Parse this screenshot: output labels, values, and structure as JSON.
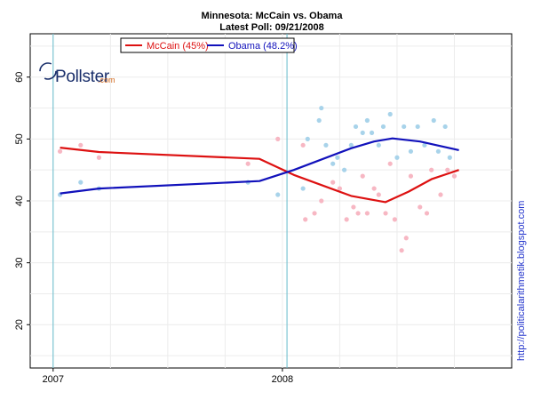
{
  "chart_data": {
    "type": "scatter",
    "title": "Minnesota: McCain vs. Obama",
    "subtitle": "Latest Poll: 09/21/2008",
    "xlabel": "",
    "ylabel": "",
    "x_ticks": [
      2007,
      2008
    ],
    "x_tick_labels": [
      "2007",
      "2008"
    ],
    "xlim": [
      2006.9,
      2009.0
    ],
    "ylim": [
      13,
      67
    ],
    "y_ticks": [
      20,
      30,
      40,
      50,
      60
    ],
    "y_tick_labels": [
      "20",
      "30",
      "40",
      "50",
      "60"
    ],
    "grid": true,
    "vlines": [
      2007.0,
      2008.02
    ],
    "legend_position": "top-left",
    "series": [
      {
        "name": "McCain (45%)",
        "color": "#dd1111",
        "point_color": "#f7b7c3",
        "trend": [
          [
            2007.03,
            48.6
          ],
          [
            2007.2,
            47.9
          ],
          [
            2007.9,
            46.8
          ],
          [
            2008.05,
            44.2
          ],
          [
            2008.3,
            40.8
          ],
          [
            2008.45,
            39.8
          ],
          [
            2008.55,
            41.5
          ],
          [
            2008.65,
            43.5
          ],
          [
            2008.77,
            45.0
          ]
        ],
        "points": [
          [
            2007.03,
            48
          ],
          [
            2007.12,
            49
          ],
          [
            2007.2,
            47
          ],
          [
            2007.85,
            46
          ],
          [
            2007.98,
            50
          ],
          [
            2008.09,
            49
          ],
          [
            2008.1,
            37
          ],
          [
            2008.14,
            38
          ],
          [
            2008.17,
            40
          ],
          [
            2008.22,
            43
          ],
          [
            2008.25,
            42
          ],
          [
            2008.28,
            37
          ],
          [
            2008.31,
            39
          ],
          [
            2008.33,
            38
          ],
          [
            2008.35,
            44
          ],
          [
            2008.37,
            38
          ],
          [
            2008.4,
            42
          ],
          [
            2008.42,
            41
          ],
          [
            2008.45,
            38
          ],
          [
            2008.47,
            46
          ],
          [
            2008.49,
            37
          ],
          [
            2008.52,
            32
          ],
          [
            2008.54,
            34
          ],
          [
            2008.56,
            44
          ],
          [
            2008.6,
            39
          ],
          [
            2008.63,
            38
          ],
          [
            2008.65,
            45
          ],
          [
            2008.69,
            41
          ],
          [
            2008.72,
            45
          ],
          [
            2008.75,
            44
          ]
        ]
      },
      {
        "name": "Obama (48.2%)",
        "color": "#1111bb",
        "point_color": "#a8d3ea",
        "trend": [
          [
            2007.03,
            41.2
          ],
          [
            2007.2,
            42.0
          ],
          [
            2007.9,
            43.2
          ],
          [
            2008.05,
            45.0
          ],
          [
            2008.3,
            48.5
          ],
          [
            2008.4,
            49.6
          ],
          [
            2008.48,
            50.1
          ],
          [
            2008.6,
            49.6
          ],
          [
            2008.77,
            48.2
          ]
        ],
        "points": [
          [
            2007.03,
            41
          ],
          [
            2007.12,
            43
          ],
          [
            2007.2,
            42
          ],
          [
            2007.85,
            43
          ],
          [
            2007.98,
            41
          ],
          [
            2008.09,
            42
          ],
          [
            2008.11,
            50
          ],
          [
            2008.16,
            53
          ],
          [
            2008.17,
            55
          ],
          [
            2008.19,
            49
          ],
          [
            2008.22,
            46
          ],
          [
            2008.24,
            47
          ],
          [
            2008.27,
            45
          ],
          [
            2008.3,
            49
          ],
          [
            2008.32,
            52
          ],
          [
            2008.35,
            51
          ],
          [
            2008.37,
            53
          ],
          [
            2008.39,
            51
          ],
          [
            2008.42,
            49
          ],
          [
            2008.44,
            52
          ],
          [
            2008.47,
            54
          ],
          [
            2008.5,
            47
          ],
          [
            2008.53,
            52
          ],
          [
            2008.56,
            48
          ],
          [
            2008.59,
            52
          ],
          [
            2008.62,
            49
          ],
          [
            2008.66,
            53
          ],
          [
            2008.68,
            48
          ],
          [
            2008.71,
            52
          ],
          [
            2008.73,
            47
          ]
        ]
      }
    ]
  },
  "watermark": {
    "logo_text": "Pollster",
    "logo_suffix": ".com",
    "side_text": "http://politicalarithmetik.blogspot.com"
  }
}
